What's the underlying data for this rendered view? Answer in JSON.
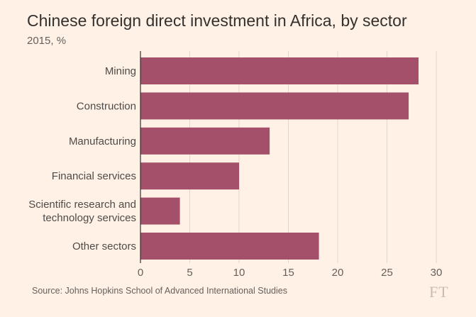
{
  "chart_data": {
    "type": "bar",
    "orientation": "horizontal",
    "title": "Chinese foreign direct investment in Africa, by sector",
    "subtitle": "2015, %",
    "categories": [
      "Mining",
      "Construction",
      "Manufacturing",
      "Financial services",
      "Scientific research and technology services",
      "Other sectors"
    ],
    "category_lines": [
      [
        "Mining"
      ],
      [
        "Construction"
      ],
      [
        "Manufacturing"
      ],
      [
        "Financial services"
      ],
      [
        "Scientific research and",
        "technology services"
      ],
      [
        "Other sectors"
      ]
    ],
    "values": [
      28.2,
      27.2,
      13.1,
      10.0,
      4.0,
      18.1
    ],
    "xlim": [
      0,
      30
    ],
    "xticks": [
      0,
      5,
      10,
      15,
      20,
      25,
      30
    ],
    "xlabel": "",
    "ylabel": "",
    "grid": true,
    "bar_color": "#a4506a",
    "grid_color": "#e3d5c8"
  },
  "source": "Source: Johns Hopkins School of Advanced International Studies",
  "logo": "FT"
}
